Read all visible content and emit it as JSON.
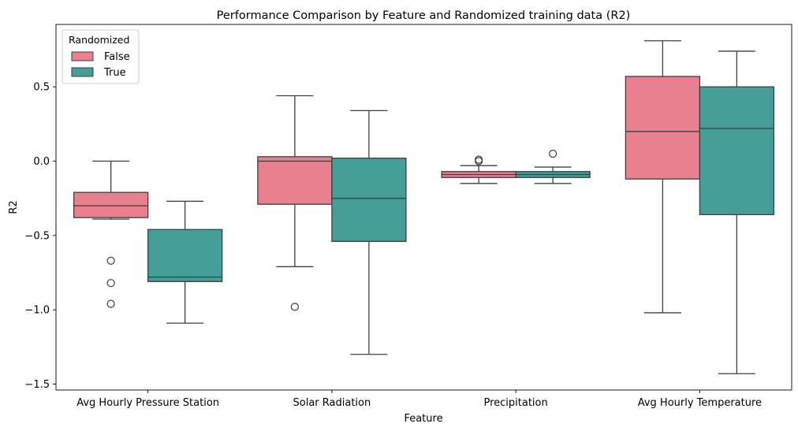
{
  "chart_data": {
    "type": "box",
    "title": "Performance Comparison by Feature and Randomized training data (R2)",
    "xlabel": "Feature",
    "ylabel": "R2",
    "ylim": [
      -1.54,
      0.92
    ],
    "yticks": [
      0.5,
      0.0,
      -0.5,
      -1.0,
      -1.5
    ],
    "ytick_labels": [
      "0.5",
      "0.0",
      "−0.5",
      "−1.0",
      "−1.5"
    ],
    "categories": [
      "Avg Hourly Pressure Station",
      "Solar Radiation",
      "Precipitation",
      "Avg Hourly Temperature"
    ],
    "legend": {
      "title": "Randomized",
      "position": "top-left"
    },
    "series": [
      {
        "name": "False",
        "color": "#e8808f",
        "boxes": [
          {
            "whisker_low": -0.39,
            "q1": -0.38,
            "median": -0.3,
            "q3": -0.21,
            "whisker_high": 0.0,
            "outliers": [
              -0.67,
              -0.82,
              -0.96
            ]
          },
          {
            "whisker_low": -0.71,
            "q1": -0.29,
            "median": 0.0,
            "q3": 0.03,
            "whisker_high": 0.44,
            "outliers": [
              -0.98
            ]
          },
          {
            "whisker_low": -0.15,
            "q1": -0.11,
            "median": -0.09,
            "q3": -0.07,
            "whisker_high": -0.03,
            "outliers": [
              0.0,
              0.01
            ]
          },
          {
            "whisker_low": -1.02,
            "q1": -0.12,
            "median": 0.2,
            "q3": 0.57,
            "whisker_high": 0.81,
            "outliers": []
          }
        ]
      },
      {
        "name": "True",
        "color": "#449e97",
        "boxes": [
          {
            "whisker_low": -1.09,
            "q1": -0.81,
            "median": -0.78,
            "q3": -0.46,
            "whisker_high": -0.27,
            "outliers": []
          },
          {
            "whisker_low": -1.3,
            "q1": -0.54,
            "median": -0.25,
            "q3": 0.02,
            "whisker_high": 0.34,
            "outliers": []
          },
          {
            "whisker_low": -0.15,
            "q1": -0.11,
            "median": -0.09,
            "q3": -0.07,
            "whisker_high": -0.04,
            "outliers": [
              0.05
            ]
          },
          {
            "whisker_low": -1.43,
            "q1": -0.36,
            "median": 0.22,
            "q3": 0.5,
            "whisker_high": 0.74,
            "outliers": []
          }
        ]
      }
    ]
  }
}
